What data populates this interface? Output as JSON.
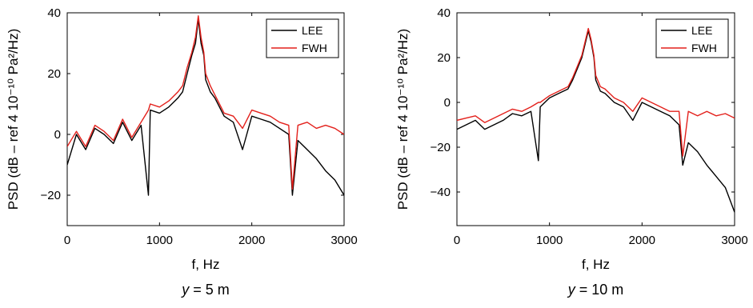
{
  "colors": {
    "lee": "#000000",
    "fwh": "#e3201b"
  },
  "chart_data": [
    {
      "type": "line",
      "caption_var": "y",
      "caption_eq": " = 5 m",
      "xlabel": "f, Hz",
      "ylabel": "PSD (dB – ref 4 10⁻¹⁰ Pa²/Hz)",
      "xlim": [
        0,
        3000
      ],
      "ylim": [
        -30,
        40
      ],
      "xticks": [
        0,
        1000,
        2000,
        3000
      ],
      "yticks": [
        -20,
        0,
        20,
        40
      ],
      "grid": false,
      "legend_position": "top-right",
      "series": [
        {
          "name": "LEE",
          "color": "#000000",
          "x": [
            0,
            100,
            200,
            300,
            400,
            500,
            600,
            700,
            800,
            880,
            900,
            1000,
            1100,
            1200,
            1250,
            1300,
            1350,
            1390,
            1420,
            1450,
            1480,
            1500,
            1550,
            1600,
            1700,
            1800,
            1900,
            2000,
            2100,
            2200,
            2300,
            2400,
            2440,
            2500,
            2600,
            2700,
            2800,
            2900,
            3000
          ],
          "y": [
            -10,
            0,
            -5,
            2,
            0,
            -3,
            4,
            -2,
            3,
            -20,
            8,
            7,
            9,
            12,
            14,
            20,
            26,
            30,
            38,
            30,
            26,
            18,
            14,
            12,
            6,
            4,
            -5,
            6,
            5,
            4,
            2,
            0,
            -20,
            -2,
            -5,
            -8,
            -12,
            -15,
            -20
          ]
        },
        {
          "name": "FWH",
          "color": "#e3201b",
          "x": [
            0,
            100,
            200,
            300,
            400,
            500,
            600,
            700,
            800,
            880,
            900,
            1000,
            1100,
            1200,
            1250,
            1300,
            1350,
            1390,
            1420,
            1450,
            1480,
            1500,
            1550,
            1600,
            1700,
            1800,
            1900,
            2000,
            2100,
            2200,
            2300,
            2400,
            2440,
            2500,
            2600,
            2700,
            2800,
            2900,
            3000
          ],
          "y": [
            -4,
            1,
            -4,
            3,
            1,
            -2,
            5,
            -1,
            4,
            8,
            10,
            9,
            11,
            14,
            16,
            22,
            27,
            32,
            39,
            32,
            27,
            20,
            16,
            13,
            7,
            6,
            2,
            8,
            7,
            6,
            4,
            3,
            -18,
            3,
            4,
            2,
            3,
            2,
            0
          ]
        }
      ]
    },
    {
      "type": "line",
      "caption_var": "y",
      "caption_eq": " = 10 m",
      "xlabel": "f, Hz",
      "ylabel": "PSD (dB – ref 4 10⁻¹⁰ Pa²/Hz)",
      "xlim": [
        0,
        3000
      ],
      "ylim": [
        -55,
        40
      ],
      "xticks": [
        0,
        1000,
        2000,
        3000
      ],
      "yticks": [
        -40,
        -20,
        0,
        20,
        40
      ],
      "grid": false,
      "legend_position": "top-right",
      "series": [
        {
          "name": "LEE",
          "color": "#000000",
          "x": [
            0,
            100,
            200,
            300,
            400,
            500,
            600,
            700,
            800,
            880,
            900,
            1000,
            1100,
            1200,
            1250,
            1300,
            1350,
            1390,
            1420,
            1450,
            1480,
            1500,
            1550,
            1600,
            1700,
            1800,
            1900,
            2000,
            2100,
            2200,
            2300,
            2400,
            2440,
            2500,
            2600,
            2700,
            2800,
            2900,
            3000
          ],
          "y": [
            -12,
            -10,
            -8,
            -12,
            -10,
            -8,
            -5,
            -6,
            -4,
            -26,
            -2,
            2,
            4,
            6,
            10,
            15,
            20,
            27,
            32,
            27,
            20,
            10,
            5,
            4,
            0,
            -2,
            -8,
            0,
            -2,
            -4,
            -6,
            -10,
            -28,
            -18,
            -22,
            -28,
            -33,
            -38,
            -49
          ]
        },
        {
          "name": "FWH",
          "color": "#e3201b",
          "x": [
            0,
            100,
            200,
            300,
            400,
            500,
            600,
            700,
            800,
            880,
            900,
            1000,
            1100,
            1200,
            1250,
            1300,
            1350,
            1390,
            1420,
            1450,
            1480,
            1500,
            1550,
            1600,
            1700,
            1800,
            1900,
            2000,
            2100,
            2200,
            2300,
            2400,
            2440,
            2500,
            2600,
            2700,
            2800,
            2900,
            3000
          ],
          "y": [
            -8,
            -7,
            -6,
            -9,
            -7,
            -5,
            -3,
            -4,
            -2,
            0,
            0,
            3,
            5,
            7,
            11,
            16,
            21,
            28,
            33,
            28,
            21,
            12,
            7,
            6,
            2,
            0,
            -4,
            2,
            0,
            -2,
            -4,
            -4,
            -24,
            -4,
            -6,
            -4,
            -6,
            -5,
            -7
          ]
        }
      ]
    }
  ]
}
